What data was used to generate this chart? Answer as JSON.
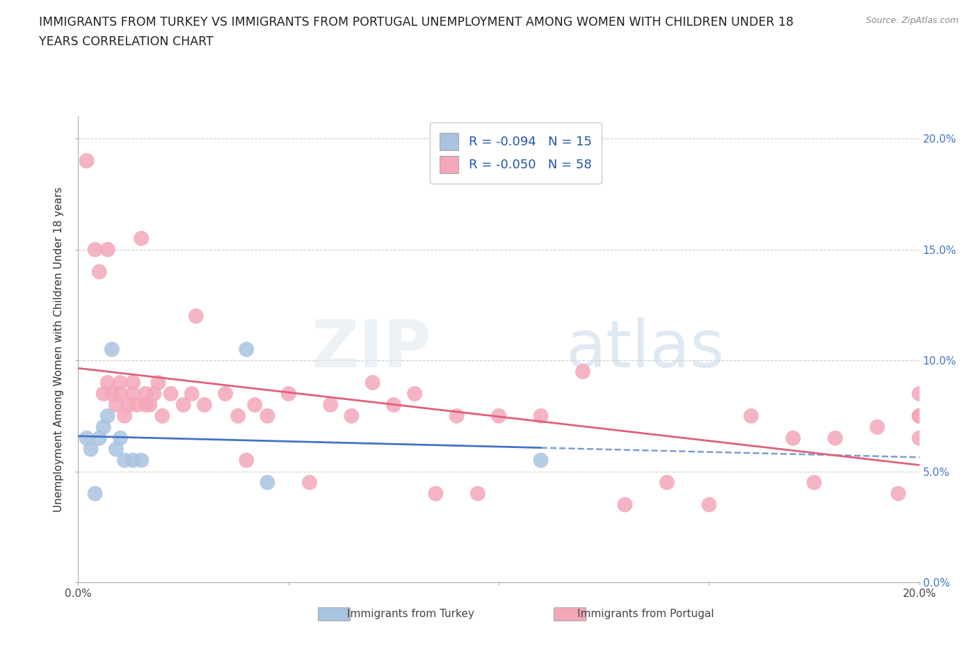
{
  "title_line1": "IMMIGRANTS FROM TURKEY VS IMMIGRANTS FROM PORTUGAL UNEMPLOYMENT AMONG WOMEN WITH CHILDREN UNDER 18",
  "title_line2": "YEARS CORRELATION CHART",
  "source": "Source: ZipAtlas.com",
  "ylabel": "Unemployment Among Women with Children Under 18 years",
  "xlim": [
    0.0,
    0.2
  ],
  "ylim": [
    0.0,
    0.21
  ],
  "ytick_labels": [
    "0.0%",
    "5.0%",
    "10.0%",
    "15.0%",
    "20.0%"
  ],
  "ytick_vals": [
    0.0,
    0.05,
    0.1,
    0.15,
    0.2
  ],
  "xtick_labels": [
    "0.0%",
    "",
    "",
    "",
    "20.0%"
  ],
  "xtick_vals": [
    0.0,
    0.05,
    0.1,
    0.15,
    0.2
  ],
  "turkey_color": "#a8c4e0",
  "portugal_color": "#f4a7b9",
  "turkey_line_color": "#4472c4",
  "portugal_line_color": "#e0607a",
  "turkey_R": -0.094,
  "turkey_N": 15,
  "portugal_R": -0.05,
  "portugal_N": 58,
  "legend_R_color": "#2255aa",
  "turkey_x": [
    0.002,
    0.003,
    0.004,
    0.005,
    0.006,
    0.007,
    0.008,
    0.009,
    0.01,
    0.011,
    0.013,
    0.015,
    0.04,
    0.11,
    0.045
  ],
  "turkey_y": [
    0.065,
    0.06,
    0.04,
    0.065,
    0.07,
    0.075,
    0.105,
    0.06,
    0.065,
    0.055,
    0.055,
    0.055,
    0.105,
    0.055,
    0.045
  ],
  "portugal_x": [
    0.002,
    0.004,
    0.005,
    0.006,
    0.007,
    0.007,
    0.008,
    0.009,
    0.01,
    0.01,
    0.011,
    0.012,
    0.013,
    0.013,
    0.014,
    0.015,
    0.016,
    0.016,
    0.017,
    0.018,
    0.019,
    0.02,
    0.022,
    0.025,
    0.027,
    0.028,
    0.03,
    0.035,
    0.038,
    0.04,
    0.042,
    0.045,
    0.05,
    0.055,
    0.06,
    0.065,
    0.07,
    0.075,
    0.08,
    0.085,
    0.09,
    0.095,
    0.1,
    0.11,
    0.12,
    0.13,
    0.14,
    0.15,
    0.16,
    0.17,
    0.175,
    0.18,
    0.19,
    0.195,
    0.2,
    0.2,
    0.2,
    0.2
  ],
  "portugal_y": [
    0.19,
    0.15,
    0.14,
    0.085,
    0.15,
    0.09,
    0.085,
    0.08,
    0.085,
    0.09,
    0.075,
    0.08,
    0.085,
    0.09,
    0.08,
    0.155,
    0.08,
    0.085,
    0.08,
    0.085,
    0.09,
    0.075,
    0.085,
    0.08,
    0.085,
    0.12,
    0.08,
    0.085,
    0.075,
    0.055,
    0.08,
    0.075,
    0.085,
    0.045,
    0.08,
    0.075,
    0.09,
    0.08,
    0.085,
    0.04,
    0.075,
    0.04,
    0.075,
    0.075,
    0.095,
    0.035,
    0.045,
    0.035,
    0.075,
    0.065,
    0.045,
    0.065,
    0.07,
    0.04,
    0.075,
    0.065,
    0.075,
    0.085
  ],
  "background_color": "#ffffff",
  "grid_color": "#cccccc",
  "title_fontsize": 12.5,
  "axis_label_fontsize": 11,
  "tick_fontsize": 11,
  "legend_fontsize": 13
}
